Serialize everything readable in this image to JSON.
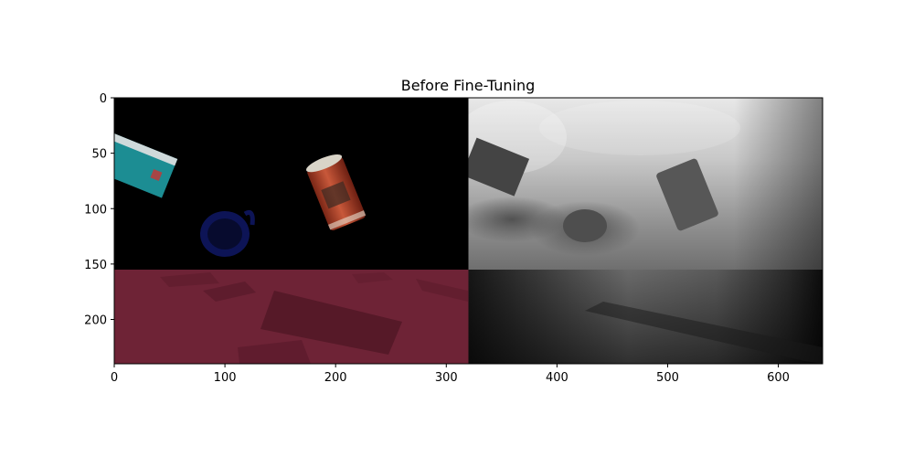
{
  "figure": {
    "title": "Before Fine-Tuning",
    "image_content": "composite: RGB scene with cans and mug (left) and predicted depth map (right)"
  },
  "chart_data": {
    "type": "image",
    "title": "Before Fine-Tuning",
    "xlim": [
      0,
      640
    ],
    "ylim": [
      240,
      0
    ],
    "x_ticks": [
      {
        "value": 0,
        "label": "0"
      },
      {
        "value": 100,
        "label": "100"
      },
      {
        "value": 200,
        "label": "200"
      },
      {
        "value": 300,
        "label": "300"
      },
      {
        "value": 400,
        "label": "400"
      },
      {
        "value": 500,
        "label": "500"
      },
      {
        "value": 600,
        "label": "600"
      }
    ],
    "y_ticks": [
      {
        "value": 0,
        "label": "0"
      },
      {
        "value": 50,
        "label": "50"
      },
      {
        "value": 100,
        "label": "100"
      },
      {
        "value": 150,
        "label": "150"
      },
      {
        "value": 200,
        "label": "200"
      }
    ],
    "panel_split_x": 320,
    "floor_line_y": 155
  },
  "colors": {
    "rgb_background": "#000000",
    "floor_tint": "#6e2336",
    "teal_box": "#1d8f93",
    "red_can": "#b4452c",
    "blue_mug": "#0f1a6a",
    "depth_light": "#e6e6e6",
    "depth_dark": "#0a0a0a"
  }
}
